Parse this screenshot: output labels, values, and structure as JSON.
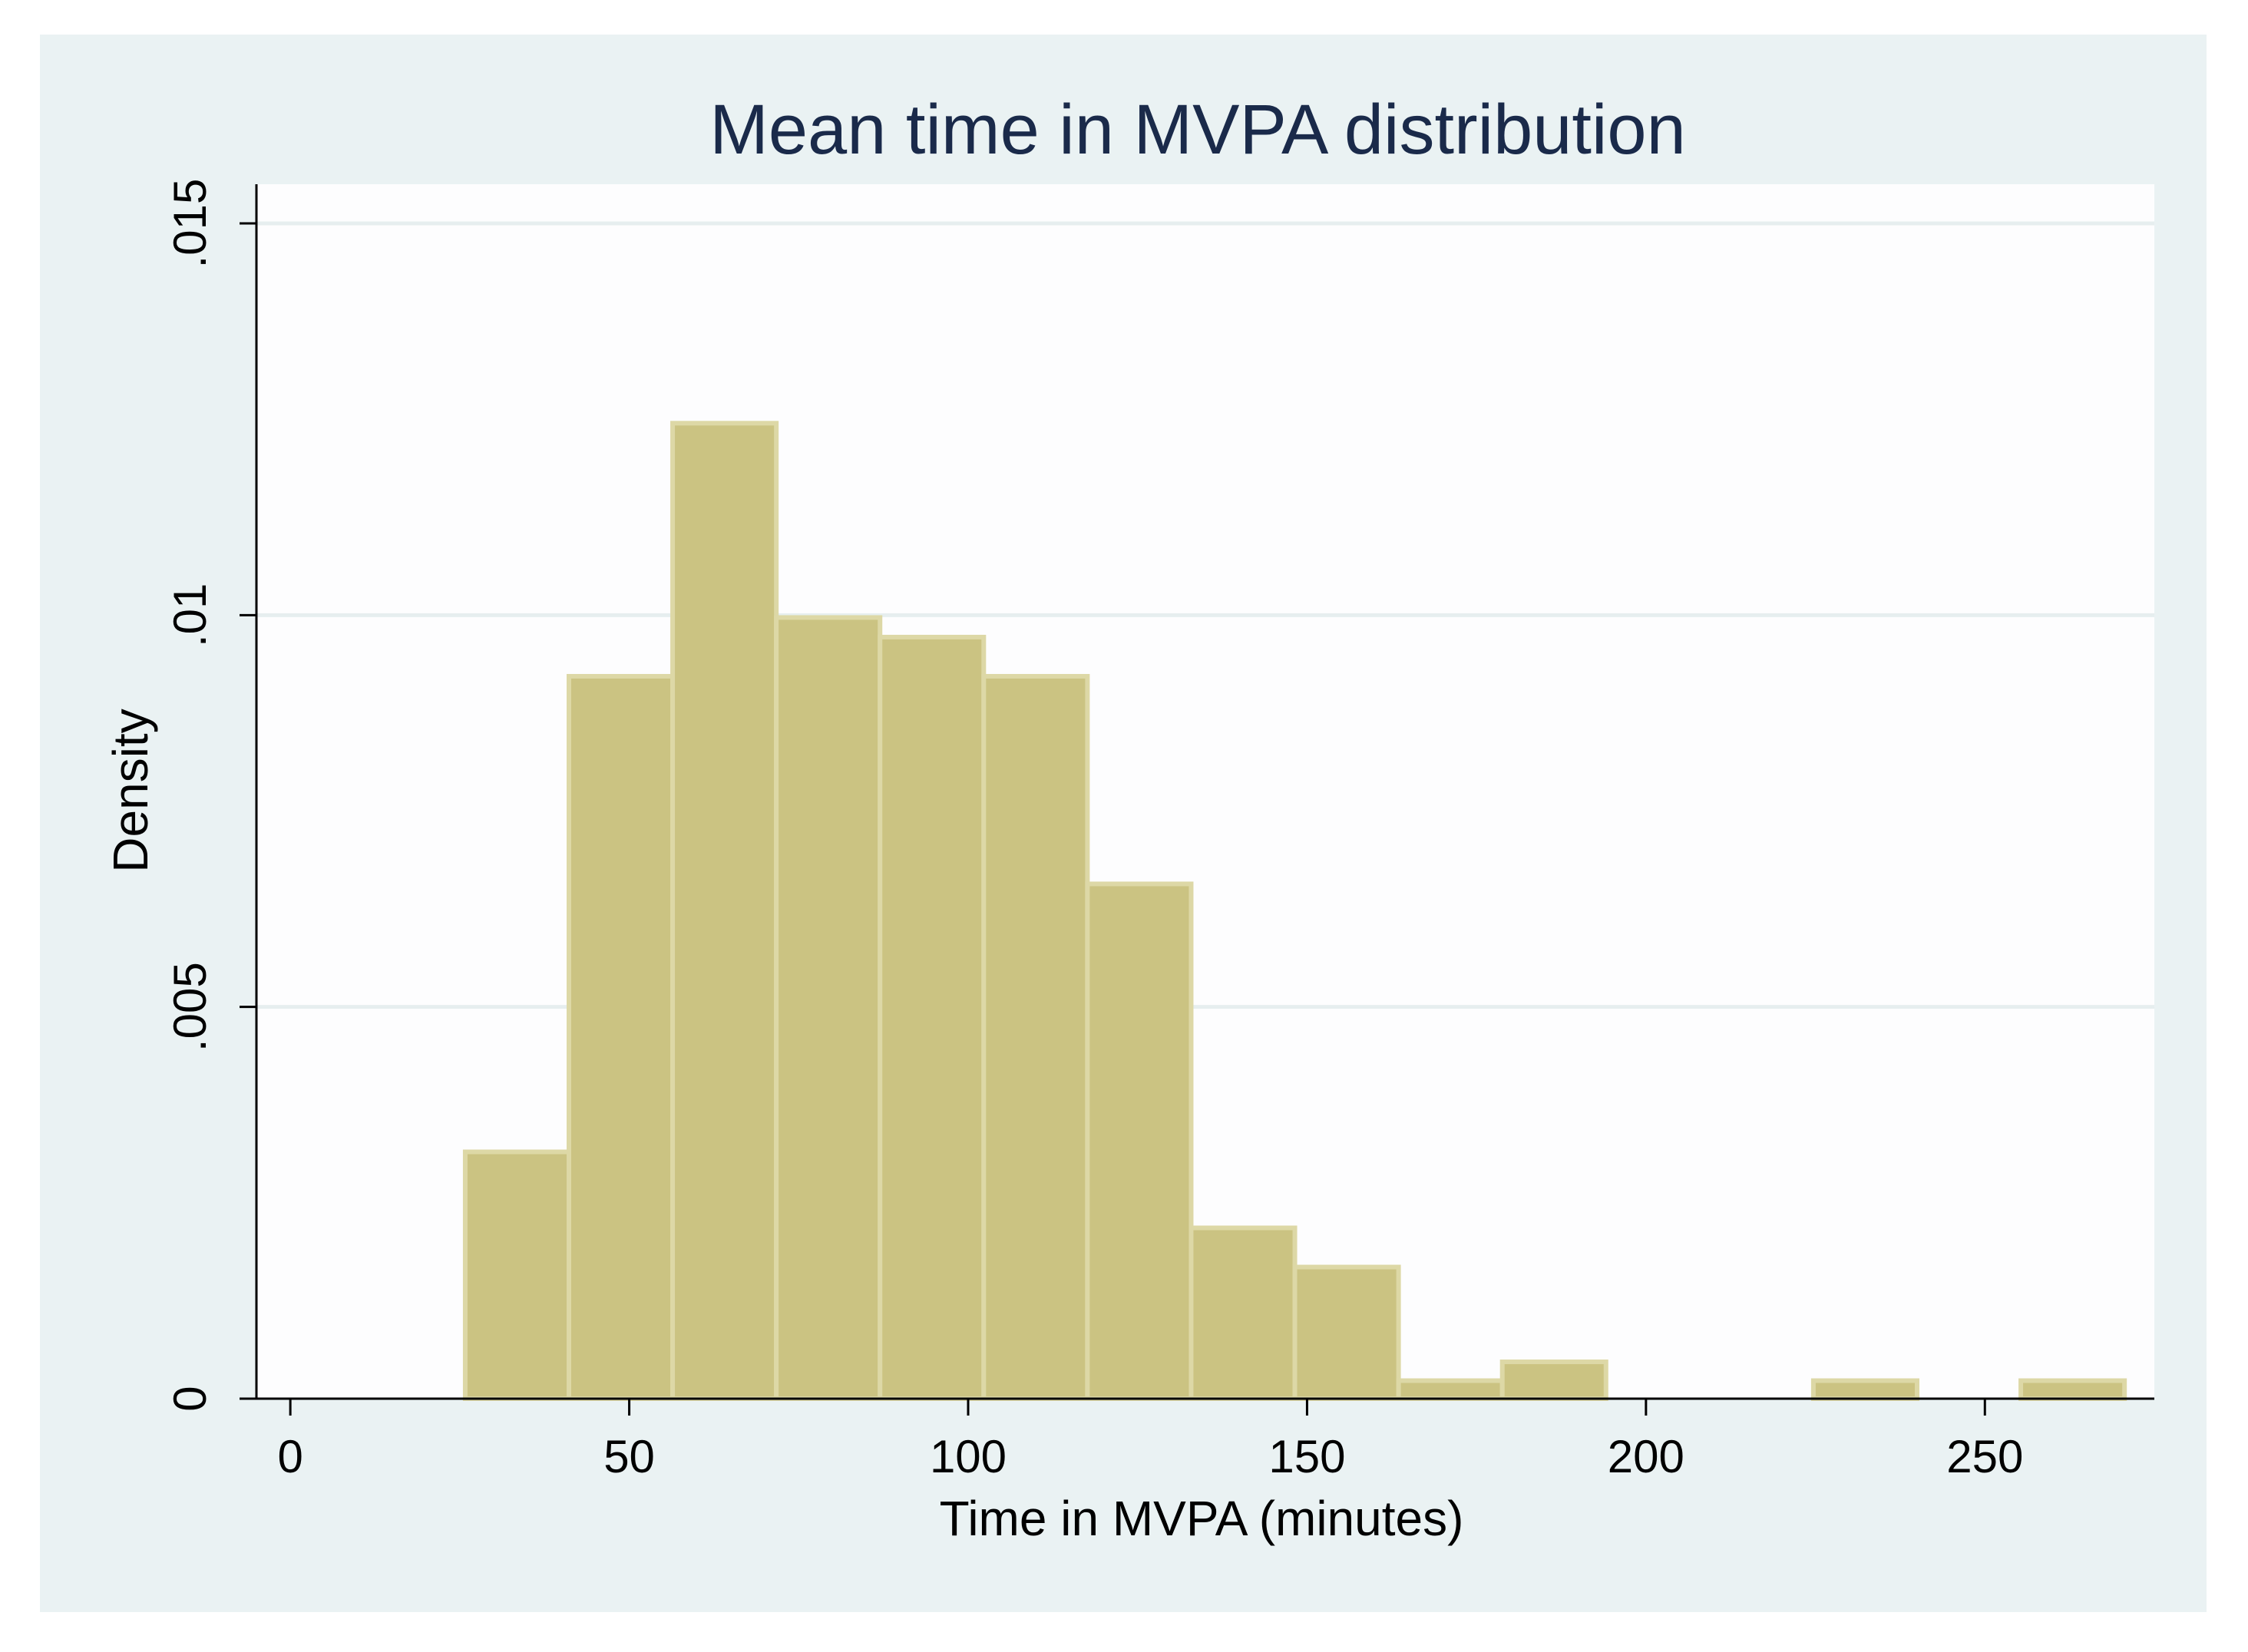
{
  "chart_data": {
    "type": "histogram",
    "title": "Mean time in MVPA distribution",
    "xlabel": "Time in MVPA (minutes)",
    "ylabel": "Density",
    "xlim": [
      -5,
      275
    ],
    "ylim": [
      0,
      0.0155
    ],
    "x_ticks": [
      {
        "value": 0,
        "label": "0"
      },
      {
        "value": 50,
        "label": "50"
      },
      {
        "value": 100,
        "label": "100"
      },
      {
        "value": 150,
        "label": "150"
      },
      {
        "value": 200,
        "label": "200"
      },
      {
        "value": 250,
        "label": "250"
      }
    ],
    "y_ticks": [
      {
        "value": 0,
        "label": "0"
      },
      {
        "value": 0.005,
        "label": ".005"
      },
      {
        "value": 0.01,
        "label": ".01"
      },
      {
        "value": 0.015,
        "label": ".015"
      }
    ],
    "grid": true,
    "bin_width": 15.3,
    "bins": [
      {
        "x0": 25.8,
        "density": 0.00315
      },
      {
        "x0": 41.1,
        "density": 0.00922
      },
      {
        "x0": 56.4,
        "density": 0.01245
      },
      {
        "x0": 71.7,
        "density": 0.00997
      },
      {
        "x0": 87.0,
        "density": 0.00972
      },
      {
        "x0": 102.3,
        "density": 0.00922
      },
      {
        "x0": 117.6,
        "density": 0.00657
      },
      {
        "x0": 132.9,
        "density": 0.00218
      },
      {
        "x0": 148.2,
        "density": 0.00168
      },
      {
        "x0": 163.5,
        "density": 0.00023
      },
      {
        "x0": 178.8,
        "density": 0.00047
      },
      {
        "x0": 224.7,
        "density": 0.00023
      },
      {
        "x0": 255.3,
        "density": 0.00023
      }
    ],
    "colors": {
      "bar_fill": "#cbc382",
      "bar_edge": "#ddd8a6",
      "plot_bg": "#fdfdfe",
      "outer_bg": "#eaf2f3",
      "grid": "#e6eeef",
      "title": "#1a2a4a"
    }
  }
}
